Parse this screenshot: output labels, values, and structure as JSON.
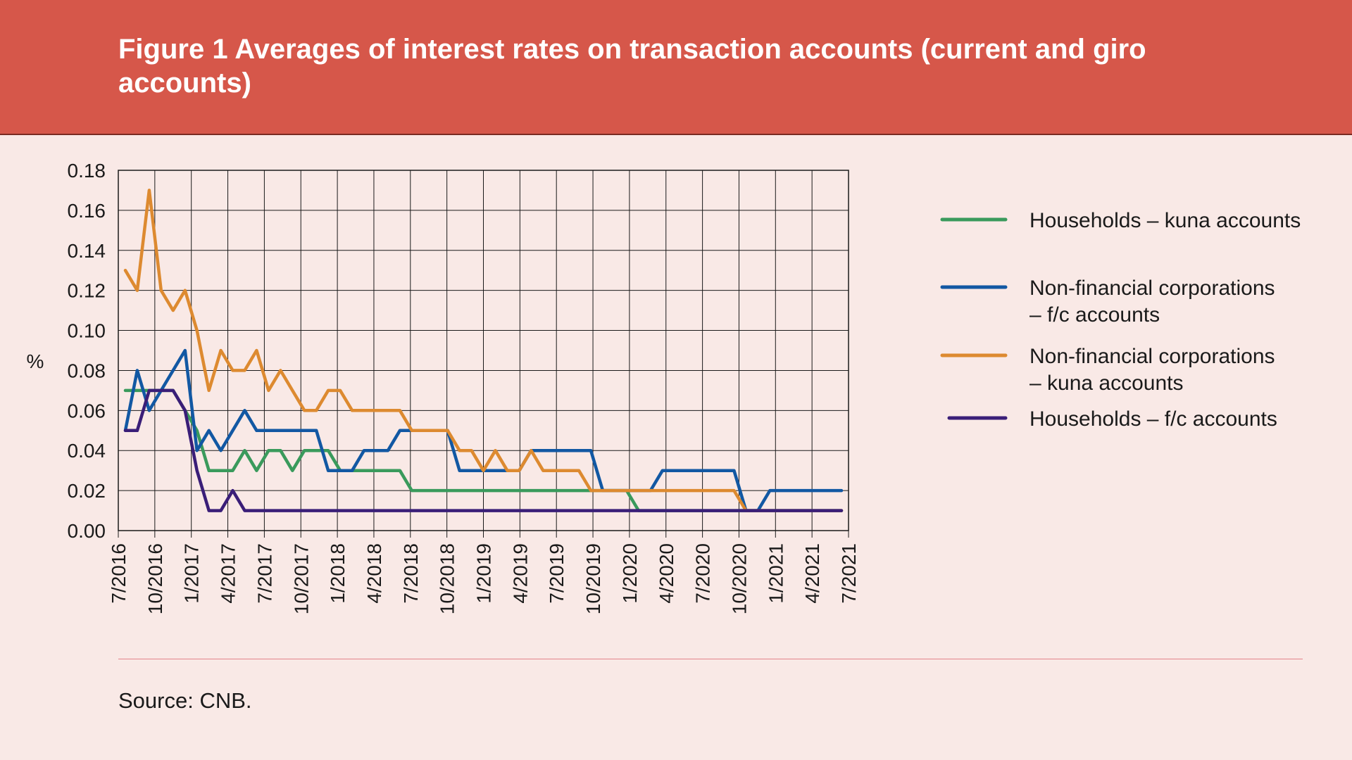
{
  "figure_title": "Figure 1 Averages of interest rates on transaction accounts (current and giro accounts)",
  "source": "Source: CNB.",
  "colors": {
    "header_bg": "#d6574a",
    "page_bg": "#f9e9e6",
    "households_kuna": "#3a9a5c",
    "nfc_fc": "#1258a3",
    "nfc_kuna": "#dd8a30",
    "households_fc": "#3a1e78"
  },
  "chart_data": {
    "type": "line",
    "title": "",
    "xlabel": "",
    "ylabel": "%",
    "ylim": [
      0,
      0.18
    ],
    "yticks": [
      "0.00",
      "0.02",
      "0.04",
      "0.06",
      "0.08",
      "0.10",
      "0.12",
      "0.14",
      "0.16",
      "0.18"
    ],
    "xticks": [
      "7/2016",
      "10/2016",
      "1/2017",
      "4/2017",
      "7/2017",
      "10/2017",
      "1/2018",
      "4/2018",
      "7/2018",
      "10/2018",
      "1/2019",
      "4/2019",
      "7/2019",
      "10/2019",
      "1/2020",
      "4/2020",
      "7/2020",
      "10/2020",
      "1/2021",
      "4/2021",
      "7/2021"
    ],
    "x": [
      "7/2016",
      "8/2016",
      "9/2016",
      "10/2016",
      "11/2016",
      "12/2016",
      "1/2017",
      "2/2017",
      "3/2017",
      "4/2017",
      "5/2017",
      "6/2017",
      "7/2017",
      "8/2017",
      "9/2017",
      "10/2017",
      "11/2017",
      "12/2017",
      "1/2018",
      "2/2018",
      "3/2018",
      "4/2018",
      "5/2018",
      "6/2018",
      "7/2018",
      "8/2018",
      "9/2018",
      "10/2018",
      "11/2018",
      "12/2018",
      "1/2019",
      "2/2019",
      "3/2019",
      "4/2019",
      "5/2019",
      "6/2019",
      "7/2019",
      "8/2019",
      "9/2019",
      "10/2019",
      "11/2019",
      "12/2019",
      "1/2020",
      "2/2020",
      "3/2020",
      "4/2020",
      "5/2020",
      "6/2020",
      "7/2020",
      "8/2020",
      "9/2020",
      "10/2020",
      "11/2020",
      "12/2020",
      "1/2021",
      "2/2021",
      "3/2021",
      "4/2021",
      "5/2021",
      "6/2021",
      "7/2021"
    ],
    "grid": true,
    "legend_position": "right",
    "series": [
      {
        "name": "Households – kuna accounts",
        "color": "#3a9a5c",
        "values": [
          0.07,
          0.07,
          0.07,
          0.07,
          0.07,
          0.06,
          0.05,
          0.03,
          0.03,
          0.03,
          0.04,
          0.03,
          0.04,
          0.04,
          0.03,
          0.04,
          0.04,
          0.04,
          0.03,
          0.03,
          0.03,
          0.03,
          0.03,
          0.03,
          0.02,
          0.02,
          0.02,
          0.02,
          0.02,
          0.02,
          0.02,
          0.02,
          0.02,
          0.02,
          0.02,
          0.02,
          0.02,
          0.02,
          0.02,
          0.02,
          0.02,
          0.02,
          0.02,
          0.01,
          0.01,
          0.01,
          0.01,
          0.01,
          0.01,
          0.01,
          0.01,
          0.01,
          0.01,
          0.01,
          0.01,
          0.01,
          0.01,
          0.01,
          0.01,
          0.01,
          0.01
        ]
      },
      {
        "name": "Non-financial corporations – f/c accounts",
        "color": "#1258a3",
        "values": [
          0.05,
          0.08,
          0.06,
          0.07,
          0.08,
          0.09,
          0.04,
          0.05,
          0.04,
          0.05,
          0.06,
          0.05,
          0.05,
          0.05,
          0.05,
          0.05,
          0.05,
          0.03,
          0.03,
          0.03,
          0.04,
          0.04,
          0.04,
          0.05,
          0.05,
          0.05,
          0.05,
          0.05,
          0.03,
          0.03,
          0.03,
          0.03,
          0.03,
          0.03,
          0.04,
          0.04,
          0.04,
          0.04,
          0.04,
          0.04,
          0.02,
          0.02,
          0.02,
          0.02,
          0.02,
          0.03,
          0.03,
          0.03,
          0.03,
          0.03,
          0.03,
          0.03,
          0.01,
          0.01,
          0.02,
          0.02,
          0.02,
          0.02,
          0.02,
          0.02,
          0.02
        ]
      },
      {
        "name": "Non-financial corporations – kuna accounts",
        "color": "#dd8a30",
        "values": [
          0.13,
          0.12,
          0.17,
          0.12,
          0.11,
          0.12,
          0.1,
          0.07,
          0.09,
          0.08,
          0.08,
          0.09,
          0.07,
          0.08,
          0.07,
          0.06,
          0.06,
          0.07,
          0.07,
          0.06,
          0.06,
          0.06,
          0.06,
          0.06,
          0.05,
          0.05,
          0.05,
          0.05,
          0.04,
          0.04,
          0.03,
          0.04,
          0.03,
          0.03,
          0.04,
          0.03,
          0.03,
          0.03,
          0.03,
          0.02,
          0.02,
          0.02,
          0.02,
          0.02,
          0.02,
          0.02,
          0.02,
          0.02,
          0.02,
          0.02,
          0.02,
          0.02,
          0.01,
          0.01,
          0.01,
          0.01,
          0.01,
          0.01,
          0.01,
          0.01,
          0.01
        ]
      },
      {
        "name": "Households – f/c accounts",
        "color": "#3a1e78",
        "values": [
          0.05,
          0.05,
          0.07,
          0.07,
          0.07,
          0.06,
          0.03,
          0.01,
          0.01,
          0.02,
          0.01,
          0.01,
          0.01,
          0.01,
          0.01,
          0.01,
          0.01,
          0.01,
          0.01,
          0.01,
          0.01,
          0.01,
          0.01,
          0.01,
          0.01,
          0.01,
          0.01,
          0.01,
          0.01,
          0.01,
          0.01,
          0.01,
          0.01,
          0.01,
          0.01,
          0.01,
          0.01,
          0.01,
          0.01,
          0.01,
          0.01,
          0.01,
          0.01,
          0.01,
          0.01,
          0.01,
          0.01,
          0.01,
          0.01,
          0.01,
          0.01,
          0.01,
          0.01,
          0.01,
          0.01,
          0.01,
          0.01,
          0.01,
          0.01,
          0.01,
          0.01
        ]
      }
    ],
    "legend": [
      {
        "series": 0,
        "lines": [
          "Households – kuna accounts"
        ]
      },
      {
        "series": 1,
        "lines": [
          "Non-financial corporations",
          "– f/c accounts"
        ]
      },
      {
        "series": 2,
        "lines": [
          "Non-financial corporations",
          "– kuna accounts"
        ]
      },
      {
        "series": 3,
        "lines": [
          "Households – f/c accounts"
        ]
      }
    ]
  }
}
